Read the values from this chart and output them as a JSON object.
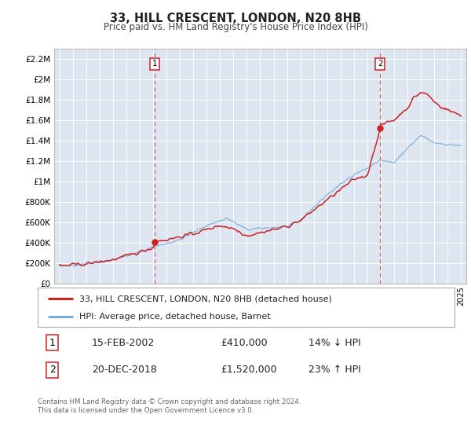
{
  "title": "33, HILL CRESCENT, LONDON, N20 8HB",
  "subtitle": "Price paid vs. HM Land Registry's House Price Index (HPI)",
  "bg_color": "#dde6f0",
  "red_color": "#cc2222",
  "blue_color": "#77aadd",
  "ylim": [
    0,
    2300000
  ],
  "yticks": [
    0,
    200000,
    400000,
    600000,
    800000,
    1000000,
    1200000,
    1400000,
    1600000,
    1800000,
    2000000,
    2200000
  ],
  "ytick_labels": [
    "£0",
    "£200K",
    "£400K",
    "£600K",
    "£800K",
    "£1M",
    "£1.2M",
    "£1.4M",
    "£1.6M",
    "£1.8M",
    "£2M",
    "£2.2M"
  ],
  "sale1_year": 2002.12,
  "sale1_price": 410000,
  "sale2_year": 2018.96,
  "sale2_price": 1520000,
  "legend_label1": "33, HILL CRESCENT, LONDON, N20 8HB (detached house)",
  "legend_label2": "HPI: Average price, detached house, Barnet",
  "table_row1_num": "1",
  "table_row1_date": "15-FEB-2002",
  "table_row1_price": "£410,000",
  "table_row1_hpi": "14% ↓ HPI",
  "table_row2_num": "2",
  "table_row2_date": "20-DEC-2018",
  "table_row2_price": "£1,520,000",
  "table_row2_hpi": "23% ↑ HPI",
  "footnote1": "Contains HM Land Registry data © Crown copyright and database right 2024.",
  "footnote2": "This data is licensed under the Open Government Licence v3.0."
}
